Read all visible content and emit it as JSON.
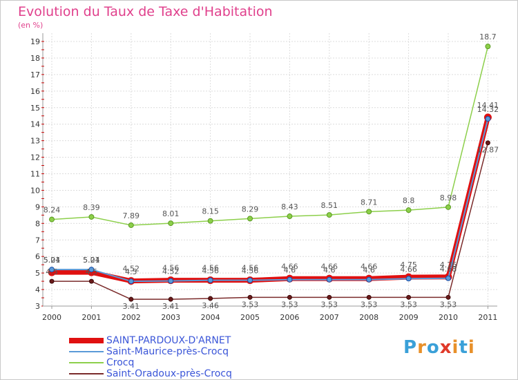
{
  "title": "Evolution du Taux de Taxe d'Habitation",
  "unit_label": "(en %)",
  "logo": {
    "text": "Proxiti",
    "colors": [
      "#3aa0d8",
      "#e8902a",
      "#3aa0d8",
      "#e03a2a",
      "#e8902a",
      "#3aa0d8",
      "#e8902a"
    ]
  },
  "chart_data": {
    "type": "line",
    "title": "Evolution du Taux de Taxe d'Habitation",
    "ylabel": "(en %)",
    "xlabel": "",
    "x": [
      "2000",
      "2001",
      "2002",
      "2003",
      "2004",
      "2005",
      "2006",
      "2007",
      "2008",
      "2009",
      "2010",
      "2011"
    ],
    "ylim": [
      3,
      19
    ],
    "yticks": [
      3,
      4,
      5,
      6,
      7,
      8,
      9,
      10,
      11,
      12,
      13,
      14,
      15,
      16,
      17,
      18,
      19
    ],
    "grid": true,
    "legend_position": "bottom-left",
    "series": [
      {
        "name": "SAINT-PARDOUX-D'ARNET",
        "color": "#e01010",
        "values": [
          5.04,
          5.04,
          4.52,
          4.56,
          4.56,
          4.56,
          4.66,
          4.66,
          4.66,
          4.75,
          4.76,
          14.41
        ],
        "labels": [
          "5.04",
          "5.04",
          "4.52",
          "4.56",
          "4.56",
          "4.56",
          "4.66",
          "4.66",
          "4.66",
          "4.75",
          "4.76",
          "14.41"
        ]
      },
      {
        "name": "Saint-Maurice-près-Crocq",
        "color": "#5a9ad8",
        "values": [
          5.21,
          5.21,
          4.5,
          4.52,
          4.56,
          4.56,
          4.6,
          4.6,
          4.6,
          4.66,
          4.68,
          14.32
        ],
        "labels": [
          "5.21",
          "5.21",
          "4.5",
          "4.52",
          "4.56",
          "4.56",
          "4.6",
          "4.6",
          "4.6",
          "4.66",
          "4.68",
          "14.32"
        ]
      },
      {
        "name": "Crocq",
        "color": "#8ccf4a",
        "values": [
          8.24,
          8.39,
          7.89,
          8.01,
          8.15,
          8.29,
          8.43,
          8.51,
          8.71,
          8.8,
          8.98,
          18.7
        ],
        "labels": [
          "8.24",
          "8.39",
          "7.89",
          "8.01",
          "8.15",
          "8.29",
          "8.43",
          "8.51",
          "8.71",
          "8.8",
          "8.98",
          "18.7"
        ]
      },
      {
        "name": "Saint-Oradoux-près-Crocq",
        "color": "#7a2a2a",
        "values": [
          4.5,
          4.5,
          3.41,
          3.41,
          3.46,
          3.53,
          3.53,
          3.53,
          3.53,
          3.53,
          3.53,
          12.87
        ],
        "labels": [
          "4.5",
          "4.5",
          "3.41",
          "3.41",
          "3.46",
          "3.53",
          "3.53",
          "3.53",
          "3.53",
          "3.53",
          "3.53",
          "12.87"
        ]
      }
    ]
  }
}
